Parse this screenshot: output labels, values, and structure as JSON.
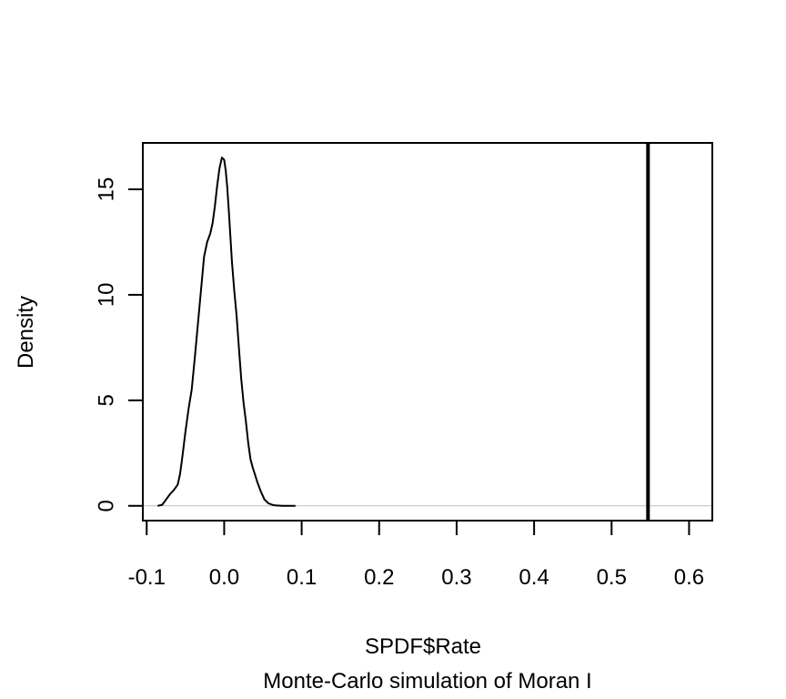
{
  "chart_data": {
    "type": "line",
    "title": "",
    "xlabel": "SPDF$Rate",
    "sub": "Monte-Carlo simulation of Moran I",
    "ylabel": "Density",
    "xlim": [
      -0.105,
      0.63
    ],
    "ylim": [
      -0.7,
      17.2
    ],
    "xticks": [
      -0.1,
      0.0,
      0.1,
      0.2,
      0.3,
      0.4,
      0.5,
      0.6
    ],
    "xtick_labels": [
      "-0.1",
      "0.0",
      "0.1",
      "0.2",
      "0.3",
      "0.4",
      "0.5",
      "0.6"
    ],
    "yticks": [
      0,
      5,
      10,
      15
    ],
    "ytick_labels": [
      "0",
      "5",
      "10",
      "15"
    ],
    "grid": false,
    "baseline": {
      "y": 0,
      "color": "#bebebe"
    },
    "observed_line": {
      "x": 0.547,
      "color": "#000000"
    },
    "series": [
      {
        "color": "#000000",
        "x": [
          -0.086,
          -0.08,
          -0.075,
          -0.07,
          -0.065,
          -0.06,
          -0.057,
          -0.054,
          -0.05,
          -0.046,
          -0.042,
          -0.038,
          -0.034,
          -0.03,
          -0.026,
          -0.022,
          -0.018,
          -0.015,
          -0.012,
          -0.009,
          -0.006,
          -0.003,
          0.0,
          0.002,
          0.004,
          0.006,
          0.008,
          0.01,
          0.013,
          0.016,
          0.019,
          0.022,
          0.025,
          0.028,
          0.031,
          0.034,
          0.037,
          0.04,
          0.043,
          0.047,
          0.052,
          0.057,
          0.062,
          0.066,
          0.07,
          0.075,
          0.08,
          0.086,
          0.092
        ],
        "y": [
          0.0,
          0.05,
          0.3,
          0.55,
          0.75,
          1.0,
          1.5,
          2.3,
          3.5,
          4.6,
          5.5,
          7.0,
          8.6,
          10.2,
          11.8,
          12.5,
          12.9,
          13.4,
          14.2,
          15.2,
          16.0,
          16.5,
          16.4,
          15.9,
          15.1,
          14.0,
          12.8,
          11.6,
          10.2,
          9.0,
          7.5,
          6.0,
          4.9,
          4.0,
          3.0,
          2.2,
          1.8,
          1.45,
          1.1,
          0.7,
          0.3,
          0.12,
          0.05,
          0.02,
          0.01,
          0.0,
          0.0,
          0.0,
          0.0
        ]
      }
    ]
  }
}
